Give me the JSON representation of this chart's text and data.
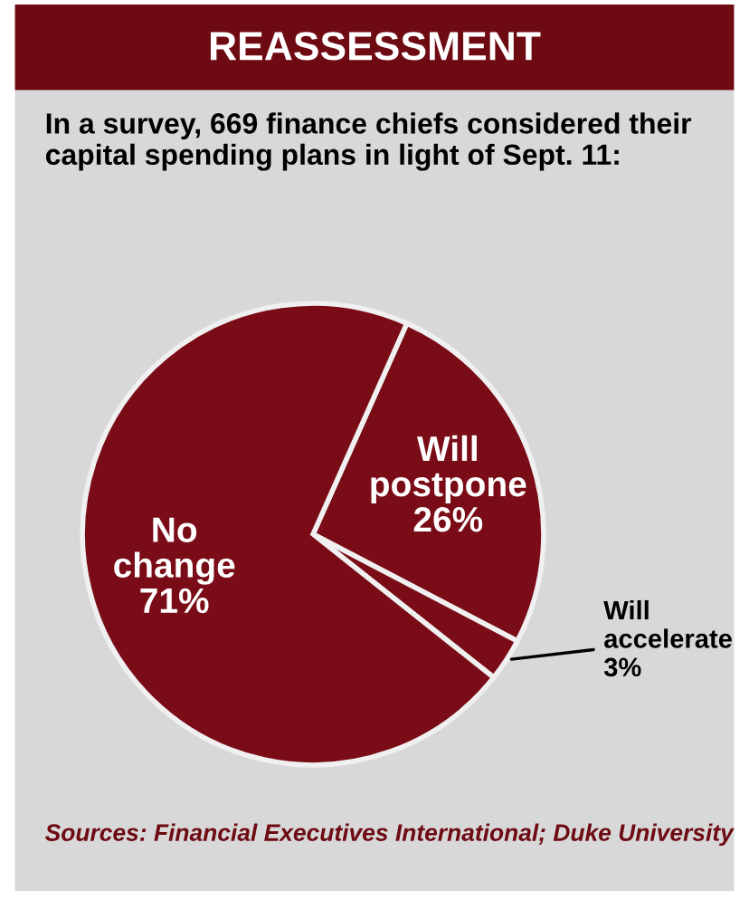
{
  "chart_data": {
    "type": "pie",
    "title": "REASSESSMENT",
    "subtitle": "In a survey, 669 finance chiefs considered their capital spending plans in light of Sept. 11:",
    "categories": [
      "Will postpone",
      "Will accelerate",
      "No change"
    ],
    "values": [
      26,
      3,
      71
    ],
    "value_labels": [
      "26%",
      "3%",
      "71%"
    ],
    "colors": [
      "#7a0c17",
      "#7a0c17",
      "#7a0c17"
    ],
    "annotations": [
      "Sources: Financial Executives International; Duke University"
    ]
  }
}
